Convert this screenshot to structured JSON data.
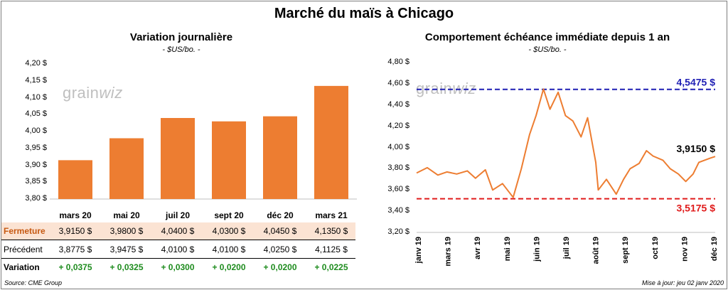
{
  "title": "Marché du maïs à Chicago",
  "source": "Source: CME Group",
  "updated": "Mise à jour: jeu 02 janv 2020",
  "logo_text": "grainwiz",
  "colors": {
    "bar": "#ed7d31",
    "line": "#ed7d31",
    "high": "#1f1fb4",
    "low": "#e01b1b",
    "variation": "#1e8c1e"
  },
  "chart_data": [
    {
      "type": "bar",
      "title": "Variation journalière",
      "unit": "- $US/bo. -",
      "categories": [
        "mars 20",
        "mai 20",
        "juil 20",
        "sept 20",
        "déc 20",
        "mars 21"
      ],
      "values": [
        3.915,
        3.98,
        4.04,
        4.03,
        4.045,
        4.135
      ],
      "ylim": [
        3.8,
        4.2
      ],
      "yticks": [
        "3,80 $",
        "3,85 $",
        "3,90 $",
        "3,95 $",
        "4,00 $",
        "4,05 $",
        "4,10 $",
        "4,15 $",
        "4,20 $"
      ],
      "table": {
        "rows": [
          {
            "label": "Fermeture",
            "values": [
              "3,9150 $",
              "3,9800 $",
              "4,0400 $",
              "4,0300 $",
              "4,0450 $",
              "4,1350 $"
            ]
          },
          {
            "label": "Précédent",
            "values": [
              "3,8775 $",
              "3,9475 $",
              "4,0100 $",
              "4,0100 $",
              "4,0250 $",
              "4,1125 $"
            ]
          },
          {
            "label": "Variation",
            "values": [
              "+ 0,0375",
              "+ 0,0325",
              "+ 0,0300",
              "+ 0,0200",
              "+ 0,0200",
              "+ 0,0225"
            ]
          }
        ]
      }
    },
    {
      "type": "line",
      "title": "Comportement échéance immédiate depuis 1 an",
      "unit": "- $US/bo. -",
      "ylim": [
        3.2,
        4.8
      ],
      "yticks": [
        "3,20 $",
        "3,40 $",
        "3,60 $",
        "3,80 $",
        "4,00 $",
        "4,20 $",
        "4,40 $",
        "4,60 $",
        "4,80 $"
      ],
      "xticks": [
        "janv 19",
        "mars 19",
        "avr 19",
        "mai 19",
        "juin 19",
        "juil 19",
        "août 19",
        "sept 19",
        "oct 19",
        "nov 19",
        "déc 19"
      ],
      "x": [
        "2019-01-02",
        "2019-01-15",
        "2019-01-28",
        "2019-02-08",
        "2019-02-20",
        "2019-03-05",
        "2019-03-15",
        "2019-03-27",
        "2019-04-05",
        "2019-04-17",
        "2019-04-30",
        "2019-05-10",
        "2019-05-20",
        "2019-05-28",
        "2019-06-06",
        "2019-06-14",
        "2019-06-24",
        "2019-07-03",
        "2019-07-12",
        "2019-07-22",
        "2019-07-30",
        "2019-08-09",
        "2019-08-12",
        "2019-08-22",
        "2019-09-03",
        "2019-09-12",
        "2019-09-20",
        "2019-10-01",
        "2019-10-10",
        "2019-10-18",
        "2019-10-30",
        "2019-11-08",
        "2019-11-18",
        "2019-11-27",
        "2019-12-06",
        "2019-12-13",
        "2019-12-20",
        "2019-12-27",
        "2020-01-02"
      ],
      "series": [
        {
          "values": [
            3.76,
            3.81,
            3.74,
            3.77,
            3.75,
            3.78,
            3.71,
            3.79,
            3.6,
            3.66,
            3.53,
            3.8,
            4.12,
            4.3,
            4.55,
            4.36,
            4.52,
            4.3,
            4.25,
            4.1,
            4.28,
            3.86,
            3.6,
            3.7,
            3.56,
            3.7,
            3.8,
            3.85,
            3.97,
            3.92,
            3.88,
            3.8,
            3.75,
            3.68,
            3.75,
            3.86,
            3.88,
            3.9,
            3.915
          ]
        }
      ],
      "reference_lines": [
        {
          "label": "4,5475 $",
          "value": 4.5475,
          "color": "#1f1fb4"
        },
        {
          "label": "3,5175 $",
          "value": 3.5175,
          "color": "#e01b1b"
        }
      ],
      "last_label": "3,9150 $"
    }
  ]
}
